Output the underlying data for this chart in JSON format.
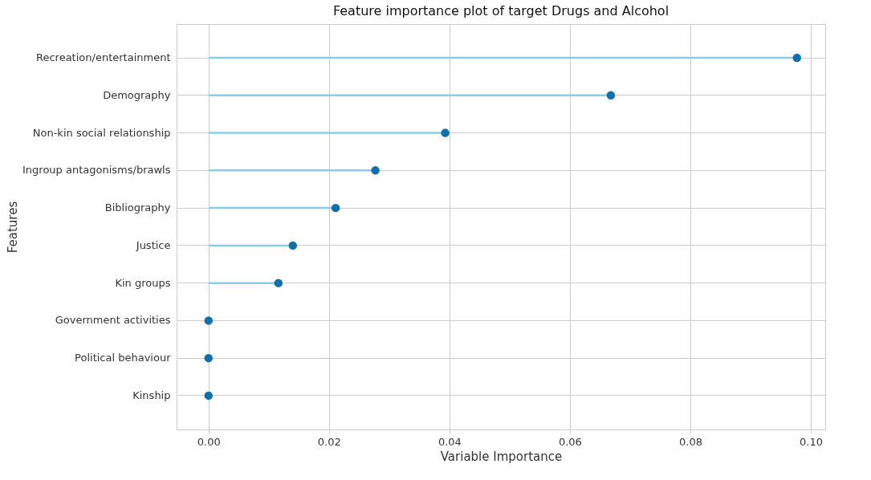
{
  "chart_data": {
    "type": "lollipop",
    "orientation": "horizontal",
    "title": "Feature importance plot of target Drugs and Alcohol",
    "xlabel": "Variable Importance",
    "ylabel": "Features",
    "categories": [
      "Recreation/entertainment",
      "Demography",
      "Non-kin social relationship",
      "Ingroup antagonisms/brawls",
      "Bibliography",
      "Justice",
      "Kin groups",
      "Government activities",
      "Political behaviour",
      "Kinship"
    ],
    "values": [
      0.0977,
      0.0668,
      0.0393,
      0.0277,
      0.0211,
      0.014,
      0.0116,
      0,
      0,
      0
    ],
    "color": "#1170aa",
    "xlim": [
      -0.0053,
      0.1024
    ],
    "xticks": [
      {
        "value": 0,
        "label": "0.00"
      },
      {
        "value": 0.02,
        "label": "0.02"
      },
      {
        "value": 0.04,
        "label": "0.04"
      },
      {
        "value": 0.06,
        "label": "0.06"
      },
      {
        "value": 0.08,
        "label": "0.08"
      },
      {
        "value": 0.1,
        "label": "0.10"
      }
    ],
    "grid": true,
    "marker": "circle"
  }
}
